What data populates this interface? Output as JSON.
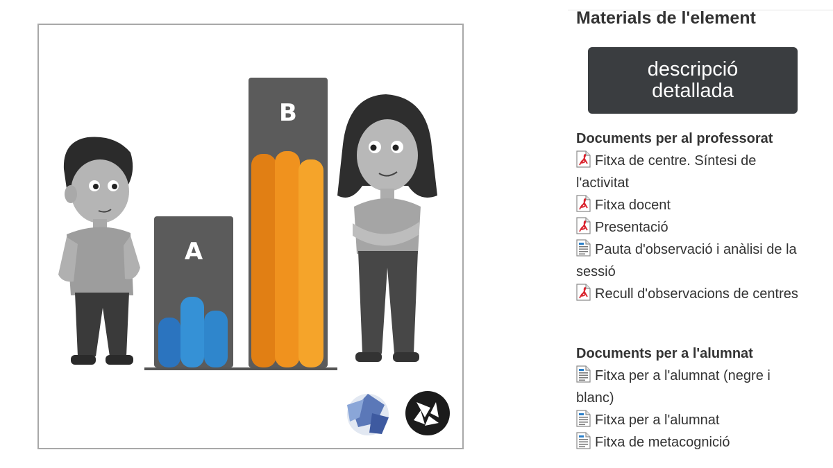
{
  "illustration": {
    "bars": [
      {
        "label": "A",
        "color": "#2f80c8"
      },
      {
        "label": "B",
        "color": "#f0921e"
      }
    ],
    "logos": [
      "mosaic-logo",
      "shutter-logo"
    ]
  },
  "materials": {
    "title": "Materials de l'element",
    "detail_button": "descripció detallada"
  },
  "teachers": {
    "title": "Documents per al professorat",
    "items": [
      {
        "label": "Fitxa de centre. Síntesi de l'activitat",
        "icon": "pdf-icon"
      },
      {
        "label": "Fitxa docent",
        "icon": "pdf-icon"
      },
      {
        "label": "Presentació",
        "icon": "pdf-icon"
      },
      {
        "label": "Pauta d'observació i anàlisi de la sessió",
        "icon": "doc-icon"
      },
      {
        "label": "Recull d'observacions de centres",
        "icon": "pdf-icon"
      }
    ]
  },
  "students": {
    "title": "Documents per a l'alumnat",
    "items": [
      {
        "label": "Fitxa per a l'alumnat (negre i blanc)",
        "icon": "doc-icon"
      },
      {
        "label": "Fitxa per a l'alumnat",
        "icon": "doc-icon"
      },
      {
        "label": "Fitxa de metacognició",
        "icon": "doc-icon"
      }
    ]
  },
  "colors": {
    "button_bg": "#3a3d40",
    "pdf_icon": "#d9232d",
    "doc_icon": "#2a7fc9"
  }
}
